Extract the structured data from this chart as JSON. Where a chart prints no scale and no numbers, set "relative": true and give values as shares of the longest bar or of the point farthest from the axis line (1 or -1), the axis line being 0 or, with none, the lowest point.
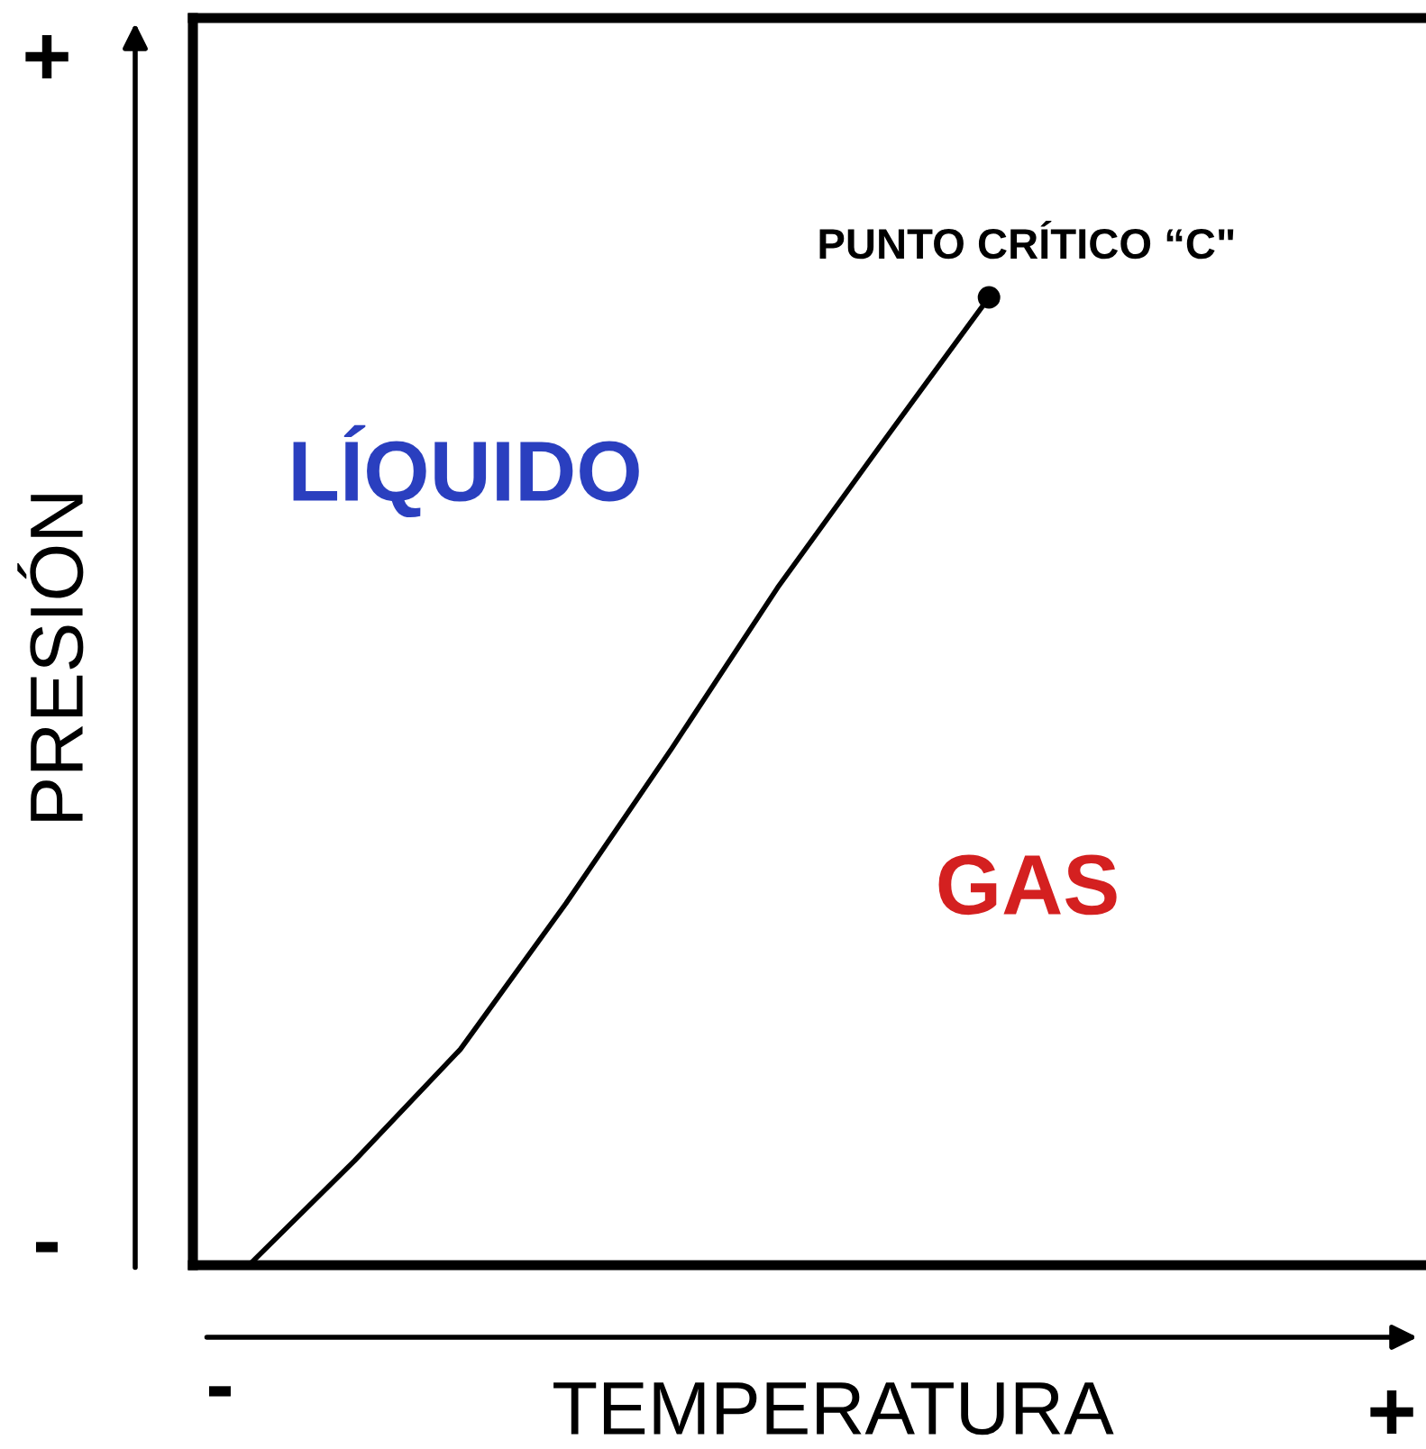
{
  "chart_data": {
    "type": "line",
    "relative": true,
    "xlabel": "TEMPERATURA",
    "ylabel": "PRESIÓN",
    "categories": [
      null,
      null,
      null,
      null,
      null,
      null,
      null,
      null
    ],
    "series": [
      {
        "color": "#000000",
        "values": [
          0,
          0.108,
          0.223,
          0.374,
          0.534,
          0.7,
          0.851,
          1
        ]
      }
    ],
    "annotations": [
      "PUNTO CRÍTICO “C\"",
      "LÍQUIDO",
      "GAS",
      "+",
      "-",
      "-",
      "+"
    ]
  }
}
